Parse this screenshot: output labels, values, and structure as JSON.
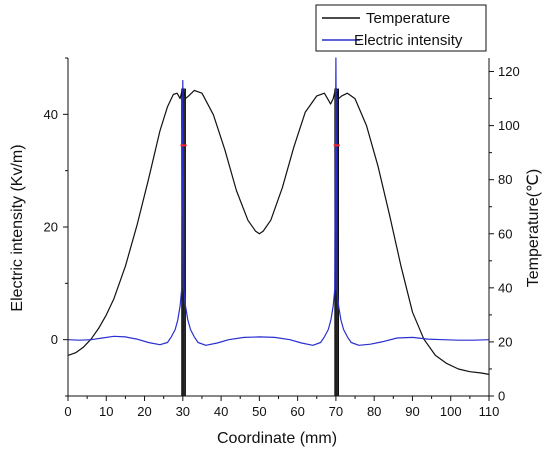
{
  "chart_data": {
    "type": "line",
    "title": "",
    "xlabel": "Coordinate (mm)",
    "ylabel_left": "Electric intensity (Kv/m)",
    "ylabel_right": "Temperature(℃)",
    "xlim": [
      0,
      110
    ],
    "ylim_left": [
      -10,
      50
    ],
    "ylim_right": [
      0,
      125
    ],
    "x_ticks": [
      0,
      10,
      20,
      30,
      40,
      50,
      60,
      70,
      80,
      90,
      100,
      110
    ],
    "y_left_ticks": [
      0,
      20,
      40
    ],
    "y_right_ticks": [
      0,
      20,
      40,
      60,
      80,
      100,
      120
    ],
    "grid": false,
    "legend_position": "top-right",
    "legend": [
      {
        "label": "Temperature",
        "color": "#111111"
      },
      {
        "label": "Electric intensity",
        "color": "#2a2fcf"
      }
    ],
    "series": [
      {
        "name": "Temperature",
        "axis": "right",
        "color": "#111111",
        "x": [
          0,
          2,
          4,
          6,
          8,
          10,
          12,
          15,
          18,
          21,
          24,
          26,
          27.5,
          28.5,
          29.3,
          30,
          30.7,
          31.5,
          33,
          35,
          38,
          41,
          44,
          47,
          49,
          50,
          51,
          53,
          56,
          59,
          62,
          65,
          67,
          67.8,
          68.6,
          69.3,
          70,
          70.7,
          71.5,
          73,
          75,
          78,
          81,
          84,
          87,
          90,
          93,
          96,
          99,
          102,
          105,
          108,
          110
        ],
        "y": [
          15,
          16,
          18,
          21,
          25,
          30,
          36,
          48,
          63,
          80,
          98,
          107,
          111.5,
          112,
          110,
          114,
          110,
          111,
          113,
          112,
          104,
          91,
          76,
          65,
          61,
          60,
          61,
          65,
          77,
          92,
          105,
          111,
          112,
          110,
          108,
          110,
          114,
          110,
          111,
          112,
          110,
          100,
          85,
          67,
          48,
          31,
          21,
          15,
          12,
          10,
          9,
          8.5,
          8
        ]
      },
      {
        "name": "Electric intensity",
        "axis": "left",
        "color": "#2a2fcf",
        "x": [
          0,
          3,
          6,
          9,
          12,
          15,
          18,
          21,
          24,
          26,
          27,
          28,
          28.7,
          29.3,
          29.7,
          30,
          30.3,
          30.7,
          31.3,
          32,
          33,
          34,
          36,
          39,
          42,
          46,
          50,
          54,
          58,
          61,
          64,
          66,
          67,
          68,
          68.7,
          69.3,
          69.7,
          70,
          70.3,
          70.7,
          71.3,
          72,
          73,
          74,
          76,
          79,
          82,
          86,
          90,
          94,
          98,
          102,
          106,
          110
        ],
        "y": [
          0,
          -0.1,
          0,
          0.3,
          0.6,
          0.5,
          0.1,
          -0.5,
          -0.9,
          -0.5,
          0.5,
          1.8,
          3.5,
          6,
          9,
          46,
          9,
          6,
          3.5,
          1.8,
          0.5,
          -0.5,
          -1,
          -0.6,
          0,
          0.4,
          0.5,
          0.4,
          0,
          -0.6,
          -1,
          -0.5,
          0.5,
          1.8,
          3.5,
          6,
          9,
          50,
          9,
          6,
          3.5,
          1.8,
          0.5,
          -0.5,
          -1,
          -0.8,
          -0.4,
          0.3,
          0.4,
          0.1,
          0,
          -0.1,
          -0.1,
          0
        ]
      }
    ],
    "electrode_bands": [
      {
        "x_start": 29.7,
        "x_end": 30.7
      },
      {
        "x_start": 69.7,
        "x_end": 70.7
      }
    ],
    "markers": [
      {
        "x": 30.2,
        "y_left": 34.5,
        "color": "#ff2020"
      },
      {
        "x": 70.2,
        "y_left": 34.5,
        "color": "#ff2020"
      }
    ]
  }
}
